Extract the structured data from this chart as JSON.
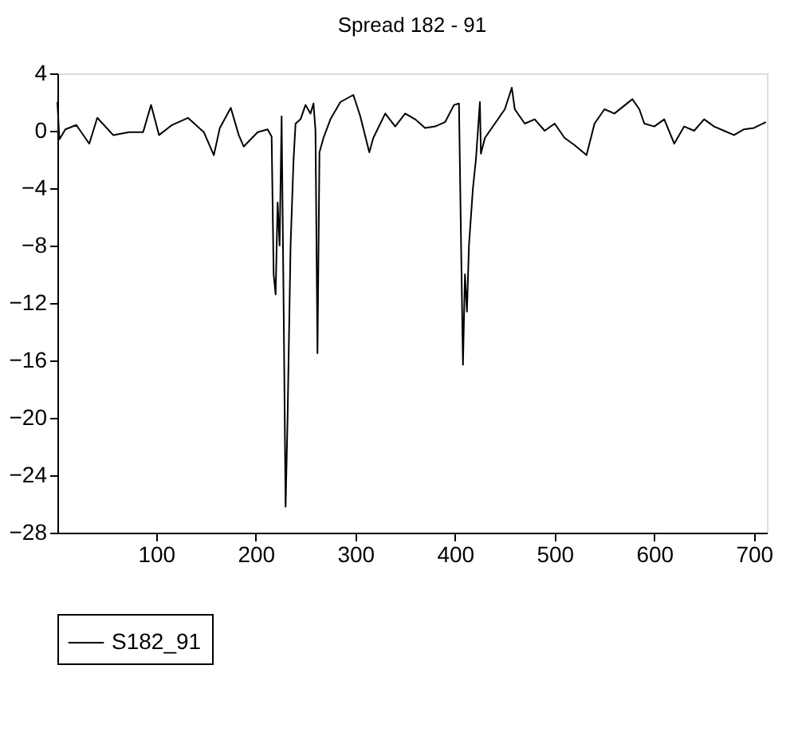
{
  "chart_data": {
    "type": "line",
    "title": "Spread 182 - 91",
    "x": [
      1,
      3,
      9,
      20,
      33,
      41,
      57,
      73,
      87,
      95,
      103,
      116,
      132,
      148,
      158,
      164,
      175,
      183,
      188,
      202,
      212,
      216,
      218,
      220,
      222,
      224,
      226,
      228,
      230,
      232,
      235,
      238,
      240,
      245,
      250,
      255,
      258,
      260,
      262,
      264,
      268,
      275,
      285,
      298,
      305,
      314,
      318,
      330,
      340,
      350,
      360,
      370,
      380,
      390,
      399,
      404,
      406,
      408,
      410,
      412,
      414,
      416,
      418,
      421,
      425,
      426,
      430,
      440,
      450,
      457,
      460,
      470,
      480,
      490,
      500,
      510,
      520,
      532,
      540,
      550,
      560,
      578,
      585,
      590,
      600,
      610,
      620,
      630,
      640,
      650,
      660,
      670,
      680,
      690,
      700,
      712
    ],
    "series": [
      {
        "name": "S182_91",
        "color": "#000000",
        "values": [
          2.0,
          -0.6,
          0.1,
          0.4,
          -0.9,
          0.9,
          -0.3,
          -0.1,
          -0.1,
          1.8,
          -0.3,
          0.4,
          0.9,
          -0.1,
          -1.7,
          0.2,
          1.6,
          -0.3,
          -1.1,
          -0.1,
          0.1,
          -0.4,
          -10.0,
          -11.4,
          -5.0,
          -8.0,
          1.0,
          -12.0,
          -26.2,
          -20.0,
          -8.0,
          -2.0,
          0.5,
          0.8,
          1.8,
          1.2,
          1.9,
          0.0,
          -15.5,
          -1.5,
          -0.5,
          0.8,
          2.0,
          2.5,
          1.0,
          -1.5,
          -0.5,
          1.2,
          0.3,
          1.2,
          0.8,
          0.2,
          0.3,
          0.6,
          1.8,
          1.9,
          -7.4,
          -16.3,
          -10.0,
          -12.6,
          -8.0,
          -6.0,
          -4.0,
          -2.0,
          2.0,
          -1.6,
          -0.5,
          0.5,
          1.5,
          3.0,
          1.5,
          0.5,
          0.8,
          0.0,
          0.5,
          -0.5,
          -1.0,
          -1.7,
          0.5,
          1.5,
          1.2,
          2.2,
          1.5,
          0.5,
          0.3,
          0.8,
          -0.9,
          0.3,
          0.0,
          0.8,
          0.3,
          0.0,
          -0.3,
          0.1,
          0.2,
          0.6
        ]
      }
    ],
    "xlim": [
      1,
      713
    ],
    "ylim": [
      -28,
      4
    ],
    "xticks": [
      100,
      200,
      300,
      400,
      500,
      600,
      700
    ],
    "yticks": [
      4,
      0,
      -4,
      -8,
      -12,
      -16,
      -20,
      -24,
      -28
    ],
    "grid": false,
    "legend": "bottom",
    "marker": "none",
    "line_style": "solid"
  }
}
